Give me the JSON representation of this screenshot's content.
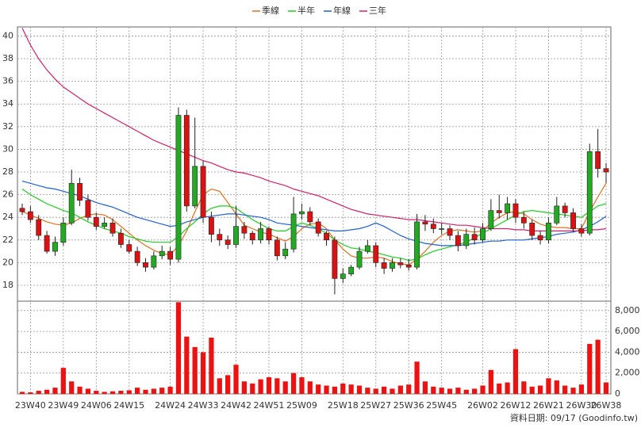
{
  "chart_data": {
    "type": "candlestick",
    "categories": [
      null,
      "23W40",
      null,
      null,
      null,
      "23W49",
      null,
      null,
      null,
      "24W06",
      null,
      null,
      null,
      "24W15",
      null,
      null,
      null,
      null,
      "24W24",
      null,
      null,
      null,
      "24W33",
      null,
      null,
      null,
      "24W42",
      null,
      null,
      null,
      "24W51",
      null,
      null,
      null,
      "25W09",
      null,
      null,
      null,
      null,
      "25W18",
      null,
      null,
      null,
      "25W27",
      null,
      null,
      null,
      "25W36",
      null,
      null,
      null,
      "25W45",
      null,
      null,
      null,
      null,
      "26W02",
      null,
      null,
      null,
      "26W12",
      null,
      null,
      null,
      "26W21",
      null,
      null,
      null,
      "26W30",
      null,
      null,
      "26W38"
    ],
    "open": [
      24.8,
      24.5,
      23.8,
      22.4,
      21.0,
      21.8,
      23.5,
      27.0,
      25.5,
      24.0,
      23.2,
      23.5,
      22.6,
      21.6,
      21.0,
      20.0,
      19.6,
      20.6,
      21.0,
      20.3,
      33.0,
      25.0,
      28.5,
      24.0,
      22.5,
      22.0,
      21.6,
      23.2,
      22.6,
      22.0,
      23.0,
      22.0,
      20.6,
      21.2,
      24.3,
      24.5,
      23.6,
      22.6,
      22.0,
      18.6,
      19.0,
      19.6,
      21.0,
      21.5,
      20.0,
      19.5,
      20.0,
      19.8,
      19.6,
      23.6,
      23.4,
      23.0,
      23.0,
      22.4,
      21.5,
      22.5,
      22.0,
      23.0,
      24.6,
      24.4,
      25.2,
      24.0,
      23.5,
      22.4,
      22.0,
      23.5,
      25.0,
      24.4,
      23.0,
      22.6,
      29.8,
      28.3
    ],
    "high": [
      25.2,
      25.0,
      24.2,
      22.8,
      22.3,
      24.0,
      28.2,
      27.5,
      26.0,
      24.4,
      24.0,
      23.9,
      23.0,
      22.0,
      21.4,
      20.4,
      21.0,
      21.5,
      21.4,
      33.7,
      33.5,
      32.8,
      29.0,
      24.5,
      23.0,
      22.4,
      25.0,
      23.6,
      22.8,
      23.6,
      23.2,
      22.3,
      21.8,
      25.8,
      25.2,
      24.9,
      23.9,
      22.8,
      22.3,
      19.5,
      19.8,
      21.4,
      22.0,
      21.8,
      20.4,
      20.4,
      20.4,
      20.3,
      24.3,
      24.2,
      23.9,
      23.5,
      23.3,
      22.8,
      23.0,
      23.1,
      23.5,
      25.6,
      26.0,
      25.8,
      25.6,
      24.5,
      23.8,
      22.8,
      24.0,
      25.8,
      25.3,
      24.8,
      23.4,
      30.5,
      31.8,
      28.8
    ],
    "low": [
      24.2,
      23.5,
      22.0,
      20.8,
      20.6,
      21.5,
      23.3,
      25.0,
      23.7,
      22.9,
      23.0,
      22.3,
      21.3,
      20.8,
      19.7,
      19.2,
      19.4,
      20.3,
      19.8,
      20.0,
      24.5,
      24.8,
      23.5,
      21.8,
      21.5,
      21.2,
      21.3,
      22.1,
      21.6,
      21.7,
      21.6,
      20.2,
      20.3,
      20.9,
      23.8,
      23.3,
      22.3,
      21.5,
      17.2,
      18.2,
      18.8,
      19.4,
      20.8,
      19.6,
      19.0,
      19.2,
      19.5,
      19.3,
      19.4,
      22.8,
      22.6,
      22.5,
      22.0,
      21.0,
      21.2,
      21.6,
      21.8,
      22.8,
      23.9,
      23.8,
      23.5,
      23.0,
      22.0,
      21.6,
      21.7,
      23.3,
      24.0,
      22.7,
      22.3,
      22.4,
      27.5,
      27.0
    ],
    "close": [
      24.5,
      23.8,
      22.4,
      21.0,
      21.8,
      23.5,
      27.0,
      25.5,
      24.0,
      23.2,
      23.5,
      22.6,
      21.6,
      21.0,
      20.0,
      19.6,
      20.6,
      21.0,
      20.3,
      33.0,
      25.0,
      28.5,
      24.0,
      22.5,
      22.0,
      21.6,
      23.2,
      22.6,
      22.0,
      23.0,
      22.0,
      20.6,
      21.2,
      24.3,
      24.5,
      23.6,
      22.6,
      22.0,
      18.6,
      19.0,
      19.6,
      21.0,
      21.5,
      20.0,
      19.5,
      20.0,
      19.8,
      19.6,
      23.6,
      23.4,
      23.0,
      23.0,
      22.4,
      21.5,
      22.5,
      22.0,
      23.0,
      24.6,
      24.4,
      25.2,
      24.0,
      23.5,
      22.4,
      22.0,
      23.5,
      25.0,
      24.4,
      23.0,
      22.6,
      29.8,
      28.3,
      28.0
    ],
    "volume": [
      200,
      150,
      300,
      400,
      600,
      2500,
      1200,
      700,
      500,
      300,
      200,
      250,
      300,
      350,
      600,
      400,
      500,
      600,
      700,
      8800,
      5500,
      4500,
      4000,
      5400,
      1500,
      1800,
      2800,
      1200,
      1000,
      1400,
      1600,
      1500,
      1200,
      2000,
      1600,
      1200,
      900,
      800,
      700,
      1000,
      900,
      800,
      600,
      500,
      700,
      500,
      800,
      900,
      3100,
      1200,
      700,
      600,
      500,
      600,
      400,
      500,
      800,
      2300,
      1000,
      1100,
      4300,
      1200,
      700,
      800,
      1500,
      1300,
      800,
      600,
      900,
      4800,
      5200,
      1100
    ],
    "up_color": "#22aa22",
    "down_color": "#dd1111",
    "volume_color": "#ee1111",
    "series": [
      {
        "name": "季線",
        "color": "#e07020",
        "values": [
          24.5,
          24.2,
          23.9,
          23.6,
          23.4,
          23.3,
          23.5,
          23.9,
          24.2,
          24.3,
          24.2,
          23.8,
          23.2,
          22.6,
          22.0,
          21.5,
          21.1,
          20.8,
          20.7,
          21.5,
          22.8,
          24.5,
          26.0,
          26.5,
          26.3,
          25.3,
          24.3,
          23.3,
          23.0,
          22.7,
          22.5,
          22.2,
          21.9,
          22.3,
          23.0,
          23.4,
          23.5,
          23.0,
          22.0,
          21.2,
          20.6,
          20.4,
          20.4,
          20.5,
          20.4,
          20.1,
          19.9,
          19.8,
          20.3,
          21.0,
          21.8,
          22.4,
          22.8,
          22.9,
          22.8,
          22.7,
          22.8,
          23.5,
          24.0,
          24.4,
          24.5,
          24.3,
          23.8,
          23.4,
          23.2,
          23.1,
          23.1,
          23.0,
          23.0,
          24.5,
          25.8,
          27.0
        ]
      },
      {
        "name": "半年",
        "color": "#22cc22",
        "values": [
          26.5,
          26.0,
          25.6,
          25.2,
          24.9,
          24.6,
          24.4,
          24.0,
          23.6,
          23.3,
          23.0,
          22.8,
          22.6,
          22.3,
          22.1,
          21.9,
          21.8,
          21.8,
          21.8,
          22.3,
          23.0,
          23.6,
          24.3,
          24.8,
          25.0,
          25.0,
          24.8,
          24.3,
          23.8,
          23.4,
          23.0,
          22.8,
          22.8,
          23.2,
          23.5,
          23.3,
          23.0,
          22.6,
          22.0,
          21.6,
          21.3,
          21.2,
          21.0,
          20.9,
          20.7,
          20.5,
          20.4,
          20.2,
          20.3,
          20.7,
          21.0,
          21.2,
          21.4,
          21.6,
          21.8,
          22.2,
          22.6,
          23.0,
          23.4,
          23.8,
          24.2,
          24.5,
          24.6,
          24.5,
          24.4,
          24.3,
          24.2,
          24.1,
          24.0,
          24.5,
          25.0,
          25.2
        ]
      },
      {
        "name": "年線",
        "color": "#2060d0",
        "values": [
          27.2,
          27.0,
          26.8,
          26.6,
          26.5,
          26.3,
          26.1,
          25.9,
          25.6,
          25.3,
          25.1,
          24.9,
          24.6,
          24.3,
          24.0,
          23.8,
          23.6,
          23.4,
          23.2,
          23.3,
          23.6,
          23.8,
          24.0,
          24.1,
          24.2,
          24.3,
          24.3,
          24.2,
          24.1,
          24.0,
          23.8,
          23.5,
          23.4,
          23.3,
          23.2,
          23.1,
          23.0,
          22.9,
          22.8,
          22.8,
          22.9,
          23.0,
          23.2,
          23.5,
          23.2,
          22.8,
          22.4,
          22.1,
          21.9,
          21.7,
          21.6,
          21.5,
          21.5,
          21.5,
          21.6,
          21.7,
          21.8,
          21.9,
          21.9,
          22.0,
          22.0,
          22.0,
          22.1,
          22.2,
          22.3,
          22.5,
          22.6,
          22.7,
          22.9,
          23.2,
          23.6,
          24.1
        ]
      },
      {
        "name": "三年",
        "color": "#d0206a",
        "values": [
          40.7,
          39.2,
          38.0,
          37.0,
          36.2,
          35.5,
          35.0,
          34.5,
          34.0,
          33.6,
          33.2,
          32.8,
          32.4,
          32.0,
          31.6,
          31.2,
          30.8,
          30.5,
          30.2,
          29.9,
          29.6,
          29.3,
          29.0,
          28.8,
          28.5,
          28.2,
          28.0,
          27.9,
          27.7,
          27.5,
          27.2,
          27.0,
          26.8,
          26.5,
          26.3,
          26.1,
          25.9,
          25.6,
          25.3,
          25.0,
          24.7,
          24.5,
          24.3,
          24.2,
          24.1,
          24.0,
          23.9,
          23.8,
          23.8,
          23.7,
          23.6,
          23.5,
          23.4,
          23.3,
          23.3,
          23.2,
          23.1,
          23.0,
          23.0,
          23.0,
          22.9,
          22.9,
          22.8,
          22.8,
          22.8,
          22.8,
          22.8,
          22.8,
          22.8,
          22.9,
          22.9,
          23.0
        ]
      }
    ],
    "ylim": [
      16.6,
      40.8
    ],
    "yticks": [
      18,
      20,
      22,
      24,
      26,
      28,
      30,
      32,
      34,
      36,
      38,
      40
    ],
    "volume_ylim": [
      0,
      8900
    ],
    "volume_yticks": [
      0,
      {
        "value": 2000,
        "label": "2,000"
      },
      {
        "value": 4000,
        "label": "4,000"
      },
      {
        "value": 6000,
        "label": "6,000"
      },
      {
        "value": 8000,
        "label": "8,000"
      }
    ],
    "grid": true,
    "footer": "資料日期: 09/17  (Goodinfo.tw)"
  }
}
